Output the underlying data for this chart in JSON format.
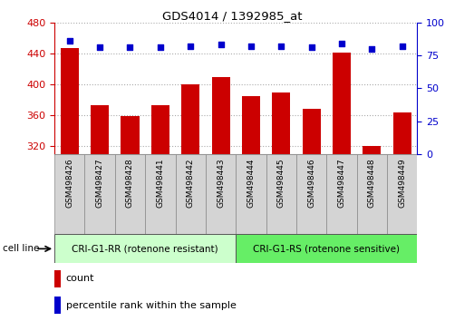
{
  "title": "GDS4014 / 1392985_at",
  "samples": [
    "GSM498426",
    "GSM498427",
    "GSM498428",
    "GSM498441",
    "GSM498442",
    "GSM498443",
    "GSM498444",
    "GSM498445",
    "GSM498446",
    "GSM498447",
    "GSM498448",
    "GSM498449"
  ],
  "counts": [
    447,
    373,
    359,
    373,
    400,
    410,
    385,
    390,
    368,
    441,
    321,
    364
  ],
  "percentile_ranks": [
    86,
    81,
    81,
    81,
    82,
    83,
    82,
    82,
    81,
    84,
    80,
    82
  ],
  "group1_label": "CRI-G1-RR (rotenone resistant)",
  "group2_label": "CRI-G1-RS (rotenone sensitive)",
  "group1_count": 6,
  "group2_count": 6,
  "ylim_left": [
    310,
    480
  ],
  "ylim_right": [
    0,
    100
  ],
  "yticks_left": [
    320,
    360,
    400,
    440,
    480
  ],
  "yticks_right": [
    0,
    25,
    50,
    75,
    100
  ],
  "bar_color": "#cc0000",
  "dot_color": "#0000cc",
  "grid_color": "#aaaaaa",
  "left_axis_color": "#cc0000",
  "right_axis_color": "#0000cc",
  "group_bg1": "#ccffcc",
  "group_bg2": "#66ee66",
  "tick_bg": "#d4d4d4"
}
